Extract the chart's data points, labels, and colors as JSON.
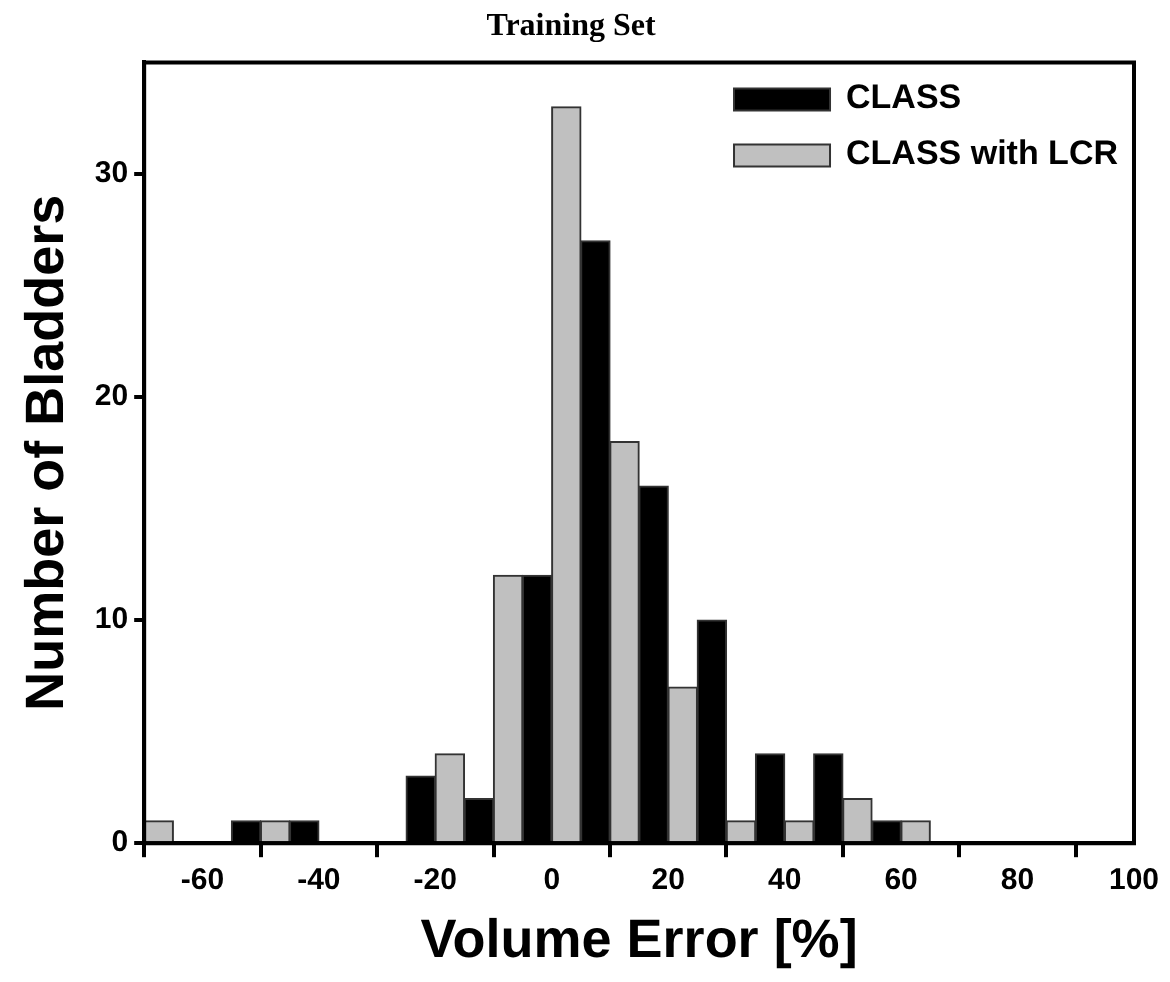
{
  "chart_data": {
    "type": "bar",
    "title": "Training Set",
    "xlabel": "Volume Error [%]",
    "ylabel": "Number of Bladders",
    "x": [
      -70,
      -60,
      -50,
      -40,
      -30,
      -20,
      -10,
      0,
      10,
      20,
      30,
      40,
      50,
      60
    ],
    "series": [
      {
        "name": "CLASS",
        "color": "#000000",
        "values": [
          0,
          0,
          1,
          1,
          0,
          3,
          2,
          12,
          27,
          16,
          10,
          4,
          4,
          1
        ]
      },
      {
        "name": "CLASS with LCR",
        "color": "#c0c0c0",
        "values": [
          1,
          0,
          1,
          0,
          0,
          4,
          12,
          33,
          18,
          7,
          1,
          1,
          2,
          1
        ]
      }
    ],
    "xlim": [
      -70,
      100
    ],
    "xticks": [
      -60,
      -40,
      -20,
      0,
      20,
      40,
      60,
      80,
      100
    ],
    "ylim": [
      0,
      35
    ],
    "yticks": [
      0,
      10,
      20,
      30
    ],
    "grid": false,
    "legend": "top right"
  }
}
